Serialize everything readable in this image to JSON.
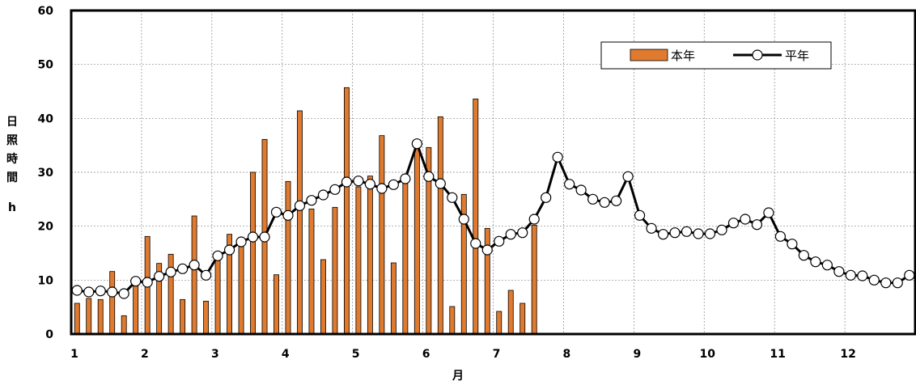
{
  "chart_data": {
    "type": "bar+line",
    "ylabel": "日照時間",
    "yunit": "h",
    "xlabel": "月",
    "ylim": [
      0,
      60
    ],
    "yticks": [
      0,
      10,
      20,
      30,
      40,
      50,
      60
    ],
    "months": [
      "1",
      "2",
      "3",
      "4",
      "5",
      "6",
      "7",
      "8",
      "9",
      "10",
      "11",
      "12"
    ],
    "periods": 72,
    "legend": {
      "position": "top-right",
      "bar_label": "本年",
      "line_label": "平年"
    },
    "series": [
      {
        "name": "本年",
        "kind": "bar",
        "color": "#e07a2e",
        "values": [
          5.7,
          6.6,
          6.4,
          11.6,
          3.4,
          9.9,
          18.1,
          13.1,
          14.8,
          6.4,
          21.9,
          6.1,
          14.3,
          18.5,
          17.4,
          30.0,
          36.1,
          11.0,
          28.3,
          41.4,
          23.2,
          13.8,
          23.5,
          45.7,
          27.3,
          29.3,
          36.8,
          13.2,
          28.8,
          34.8,
          34.6,
          40.3,
          5.1,
          25.9,
          43.6,
          19.6,
          4.2,
          8.1,
          5.7,
          20.2
        ]
      },
      {
        "name": "平年",
        "kind": "line",
        "color": "#000000",
        "values": [
          8.1,
          7.8,
          8.0,
          7.8,
          7.5,
          9.8,
          9.6,
          10.7,
          11.5,
          12.1,
          12.8,
          10.9,
          14.5,
          15.6,
          17.1,
          18.0,
          18.0,
          22.6,
          22.0,
          23.8,
          24.8,
          25.8,
          26.8,
          28.2,
          28.4,
          27.8,
          27.0,
          27.7,
          28.8,
          35.3,
          29.2,
          27.9,
          25.3,
          21.3,
          16.8,
          15.6,
          17.2,
          18.5,
          18.8,
          21.3,
          25.3,
          32.8,
          27.8,
          26.7,
          25.0,
          24.4,
          24.7,
          29.2,
          22.0,
          19.6,
          18.5,
          18.8,
          19.0,
          18.6,
          18.6,
          19.3,
          20.6,
          21.3,
          20.3,
          22.5,
          18.1,
          16.7,
          14.6,
          13.4,
          12.8,
          11.6,
          10.9,
          10.8,
          10.0,
          9.5,
          9.5,
          10.9
        ]
      }
    ]
  }
}
